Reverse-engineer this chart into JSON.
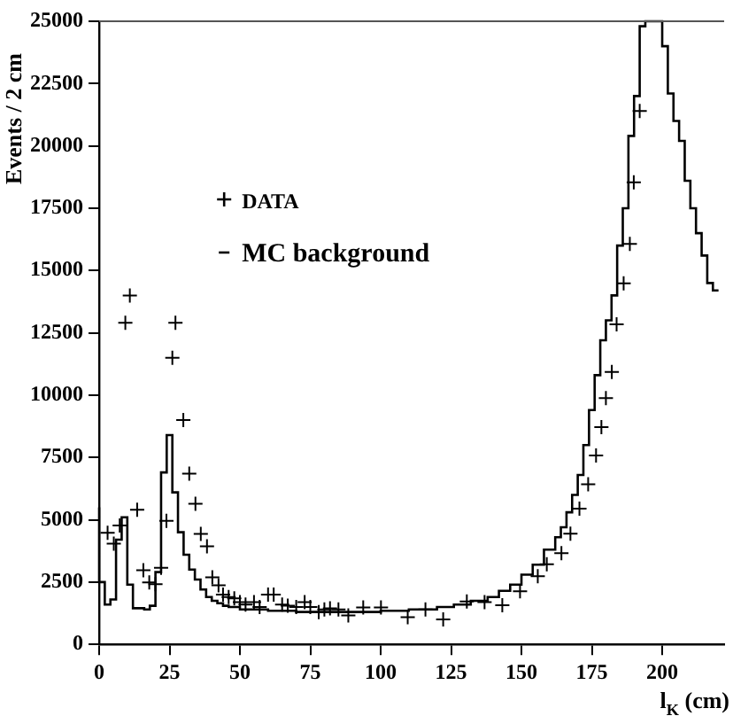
{
  "chart_data": {
    "type": "line",
    "xlabel": "l$_{K}$ (cm)",
    "ylabel": "Events / 2 cm",
    "xlim": [
      0,
      222
    ],
    "xticks": [
      0,
      25,
      50,
      75,
      100,
      125,
      150,
      175,
      200
    ],
    "ylim": [
      0,
      25000
    ],
    "yticks": [
      0,
      2500,
      5000,
      7500,
      10000,
      12500,
      15000,
      17500,
      20000,
      22500,
      25000
    ],
    "grid": false,
    "legend": "left",
    "series": [
      {
        "name": "DATA",
        "type": "scatter",
        "marker": "cross",
        "color": "#000000",
        "x": [
          3,
          5.2,
          7.3,
          9.3,
          10.9,
          13.5,
          15.7,
          17.8,
          20,
          22,
          23.9,
          26,
          27.1,
          29.9,
          32,
          34.2,
          36.1,
          38.3,
          40.2,
          42.4,
          44,
          46,
          48,
          50,
          52,
          55,
          57,
          60,
          62,
          65,
          67,
          70,
          73,
          75,
          78,
          80,
          82,
          85,
          88.5,
          93.8,
          100.1,
          109.6,
          115.9,
          122.2,
          130.6,
          136.9,
          143.2,
          149.5,
          155.8,
          159,
          164.2,
          167.4,
          170.6,
          173.7,
          176.5,
          178.4,
          180,
          182.1,
          183.8,
          186.3,
          188.5,
          189.9,
          192
        ],
        "values": [
          4480,
          4040,
          4770,
          12900,
          14000,
          5400,
          2980,
          2490,
          2420,
          3070,
          4960,
          11500,
          12900,
          9000,
          6850,
          5640,
          4430,
          3940,
          2690,
          2370,
          2000,
          1900,
          1850,
          1700,
          1600,
          1700,
          1500,
          2000,
          2000,
          1600,
          1550,
          1500,
          1700,
          1500,
          1300,
          1400,
          1450,
          1400,
          1160,
          1480,
          1480,
          1090,
          1400,
          1000,
          1720,
          1700,
          1570,
          2130,
          2740,
          3220,
          3660,
          4440,
          5450,
          6420,
          7580,
          8720,
          9880,
          10930,
          12840,
          14490,
          16070,
          18540,
          21400
        ]
      },
      {
        "name": "MC background",
        "type": "step",
        "color": "#000000",
        "x": [
          0,
          2,
          4,
          6,
          8,
          10,
          12,
          14,
          16,
          18,
          20,
          22,
          24,
          26,
          28,
          30,
          32,
          34,
          36,
          38,
          40,
          42,
          44,
          46,
          50,
          60,
          70,
          80,
          90,
          100,
          110,
          120,
          126,
          132,
          138,
          142,
          146,
          150,
          154,
          158,
          162,
          164,
          166,
          168,
          170,
          172,
          174,
          176,
          178,
          180,
          182,
          184,
          186,
          188,
          190,
          192,
          194,
          196,
          198,
          200,
          202,
          204,
          206,
          208,
          210,
          212,
          214,
          216,
          218,
          220
        ],
        "values": [
          5500,
          2500,
          1600,
          1800,
          4200,
          5100,
          2400,
          1450,
          1450,
          1400,
          1550,
          2900,
          6900,
          8400,
          6100,
          4500,
          3600,
          3000,
          2600,
          2200,
          1900,
          1750,
          1650,
          1550,
          1500,
          1400,
          1350,
          1300,
          1300,
          1300,
          1350,
          1400,
          1500,
          1600,
          1750,
          1900,
          2150,
          2400,
          2800,
          3200,
          3800,
          4300,
          4700,
          5300,
          6000,
          6800,
          8000,
          9400,
          10800,
          12200,
          13000,
          14000,
          16000,
          17500,
          20400,
          22000,
          24800,
          25000,
          25000,
          25000,
          24000,
          22100,
          21000,
          20200,
          18600,
          17500,
          16500,
          15600,
          14500,
          14200
        ]
      }
    ]
  }
}
